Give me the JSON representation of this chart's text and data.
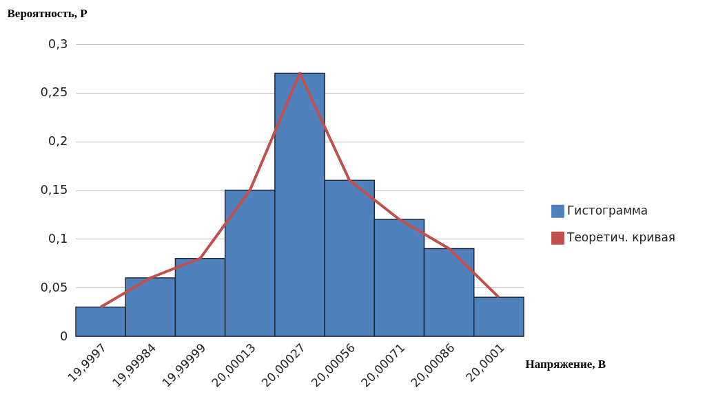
{
  "chart_data": {
    "type": "bar",
    "xlabel": "Напряжение, В",
    "ylabel": "Вероятность, P",
    "categories": [
      "19,9997",
      "19,99984",
      "19,99999",
      "20,00013",
      "20,00027",
      "20,00056",
      "20,00071",
      "20,00086",
      "20,0001"
    ],
    "series": [
      {
        "name": "Гистограмма",
        "color": "#4f81bd",
        "values": [
          0.03,
          0.06,
          0.08,
          0.15,
          0.27,
          0.16,
          0.12,
          0.09,
          0.04
        ]
      },
      {
        "name": "Теоретич. кривая",
        "type": "line",
        "color": "#c0504d",
        "values": [
          0.03,
          0.06,
          0.08,
          0.15,
          0.27,
          0.16,
          0.12,
          0.09,
          0.04
        ]
      }
    ],
    "ylim": [
      0,
      0.3
    ],
    "yticks": [
      0,
      {
        "value": 0.05,
        "label": "0,05"
      },
      {
        "value": 0.1,
        "label": "0,1"
      },
      {
        "value": 0.15,
        "label": "0,15"
      },
      {
        "value": 0.2,
        "label": "0,2"
      },
      {
        "value": 0.25,
        "label": "0,25"
      },
      {
        "value": 0.3,
        "label": "0,3"
      }
    ],
    "grid": "y",
    "legend": "right"
  }
}
